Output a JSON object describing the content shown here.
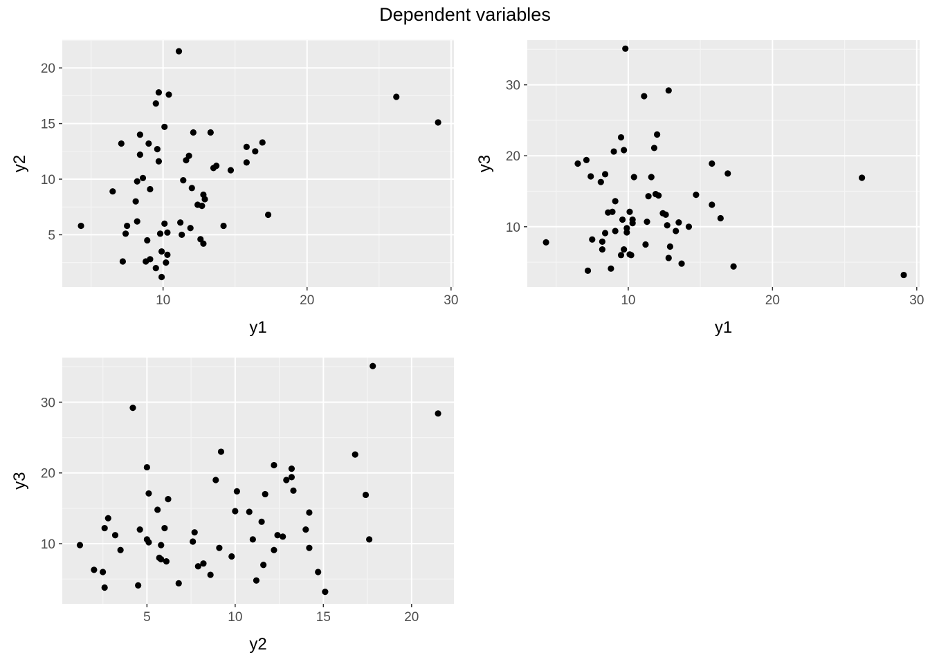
{
  "title": "Dependent variables",
  "colors": {
    "panel_bg": "#ebebeb",
    "grid_major": "#ffffff",
    "grid_minor": "#f5f5f5",
    "point": "#000000",
    "tick_text": "#4d4d4d"
  },
  "chart_data": [
    {
      "type": "scatter",
      "xlabel": "y1",
      "ylabel": "y2",
      "xlim": [
        3.0,
        30.2
      ],
      "ylim": [
        0.3,
        22.5
      ],
      "xticks": [
        10,
        20,
        30
      ],
      "yticks": [
        5,
        10,
        15,
        20
      ],
      "xtick_labels": [
        "10",
        "20",
        "30"
      ],
      "ytick_labels": [
        "5",
        "10",
        "15",
        "20"
      ],
      "grid": true,
      "points": [
        [
          4.3,
          5.8
        ],
        [
          6.5,
          8.9
        ],
        [
          7.1,
          13.2
        ],
        [
          7.2,
          2.6
        ],
        [
          7.4,
          5.1
        ],
        [
          7.5,
          5.8
        ],
        [
          8.1,
          8.0
        ],
        [
          8.2,
          9.8
        ],
        [
          8.2,
          6.2
        ],
        [
          8.4,
          14.0
        ],
        [
          8.4,
          12.2
        ],
        [
          8.6,
          10.1
        ],
        [
          8.8,
          2.6
        ],
        [
          8.9,
          4.5
        ],
        [
          9.0,
          13.2
        ],
        [
          9.1,
          9.1
        ],
        [
          9.1,
          2.8
        ],
        [
          9.5,
          2.0
        ],
        [
          9.5,
          16.8
        ],
        [
          9.6,
          12.7
        ],
        [
          9.7,
          11.6
        ],
        [
          9.7,
          17.8
        ],
        [
          9.8,
          5.1
        ],
        [
          9.9,
          1.2
        ],
        [
          9.9,
          3.5
        ],
        [
          10.1,
          14.7
        ],
        [
          10.1,
          6.0
        ],
        [
          10.2,
          2.5
        ],
        [
          10.3,
          3.2
        ],
        [
          10.3,
          5.2
        ],
        [
          10.4,
          17.6
        ],
        [
          11.1,
          21.5
        ],
        [
          11.2,
          6.1
        ],
        [
          11.3,
          5.0
        ],
        [
          11.4,
          9.9
        ],
        [
          11.6,
          11.7
        ],
        [
          11.8,
          12.1
        ],
        [
          11.9,
          5.6
        ],
        [
          12.0,
          9.2
        ],
        [
          12.1,
          14.2
        ],
        [
          12.4,
          7.7
        ],
        [
          12.6,
          4.6
        ],
        [
          12.7,
          7.6
        ],
        [
          12.8,
          4.2
        ],
        [
          12.8,
          8.6
        ],
        [
          12.9,
          8.2
        ],
        [
          13.3,
          14.2
        ],
        [
          13.5,
          11.0
        ],
        [
          13.7,
          11.2
        ],
        [
          14.2,
          5.8
        ],
        [
          14.7,
          10.8
        ],
        [
          15.8,
          12.9
        ],
        [
          15.8,
          11.5
        ],
        [
          16.4,
          12.5
        ],
        [
          16.9,
          13.3
        ],
        [
          17.3,
          6.8
        ],
        [
          26.2,
          17.4
        ],
        [
          29.1,
          15.1
        ]
      ]
    },
    {
      "type": "scatter",
      "xlabel": "y1",
      "ylabel": "y3",
      "xlim": [
        3.0,
        30.2
      ],
      "ylim": [
        1.5,
        36.3
      ],
      "xticks": [
        10,
        20,
        30
      ],
      "yticks": [
        10,
        20,
        30
      ],
      "xtick_labels": [
        "10",
        "20",
        "30"
      ],
      "ytick_labels": [
        "10",
        "20",
        "30"
      ],
      "grid": true,
      "points": [
        [
          4.3,
          7.8
        ],
        [
          6.5,
          18.9
        ],
        [
          7.1,
          19.4
        ],
        [
          7.2,
          3.8
        ],
        [
          7.4,
          17.1
        ],
        [
          7.5,
          8.2
        ],
        [
          8.1,
          16.3
        ],
        [
          8.2,
          7.9
        ],
        [
          8.2,
          6.8
        ],
        [
          8.4,
          17.4
        ],
        [
          8.4,
          9.1
        ],
        [
          8.6,
          12.0
        ],
        [
          8.8,
          4.1
        ],
        [
          8.9,
          12.1
        ],
        [
          9.0,
          20.6
        ],
        [
          9.1,
          9.4
        ],
        [
          9.1,
          13.6
        ],
        [
          9.5,
          6.0
        ],
        [
          9.5,
          22.6
        ],
        [
          9.6,
          11.0
        ],
        [
          9.7,
          20.8
        ],
        [
          9.7,
          6.8
        ],
        [
          9.8,
          35.1
        ],
        [
          9.9,
          9.2
        ],
        [
          9.9,
          9.8
        ],
        [
          10.1,
          12.1
        ],
        [
          10.1,
          6.1
        ],
        [
          10.2,
          6.0
        ],
        [
          10.3,
          10.5
        ],
        [
          10.3,
          11.0
        ],
        [
          10.4,
          17.0
        ],
        [
          11.1,
          28.4
        ],
        [
          11.2,
          7.5
        ],
        [
          11.3,
          10.7
        ],
        [
          11.4,
          14.3
        ],
        [
          11.6,
          17.0
        ],
        [
          11.8,
          21.1
        ],
        [
          11.9,
          14.6
        ],
        [
          12.0,
          23.0
        ],
        [
          12.1,
          14.4
        ],
        [
          12.4,
          11.9
        ],
        [
          12.6,
          11.7
        ],
        [
          12.7,
          10.2
        ],
        [
          12.8,
          5.6
        ],
        [
          12.8,
          29.2
        ],
        [
          12.9,
          7.2
        ],
        [
          13.3,
          9.4
        ],
        [
          13.5,
          10.6
        ],
        [
          13.7,
          4.8
        ],
        [
          14.2,
          10.0
        ],
        [
          14.7,
          14.5
        ],
        [
          15.8,
          18.9
        ],
        [
          15.8,
          13.1
        ],
        [
          16.4,
          11.2
        ],
        [
          16.9,
          17.5
        ],
        [
          17.3,
          4.4
        ],
        [
          26.2,
          16.9
        ],
        [
          29.1,
          3.2
        ]
      ]
    },
    {
      "type": "scatter",
      "xlabel": "y2",
      "ylabel": "y3",
      "xlim": [
        0.2,
        22.4
      ],
      "ylim": [
        1.5,
        36.3
      ],
      "xticks": [
        5,
        10,
        15,
        20
      ],
      "yticks": [
        10,
        20,
        30
      ],
      "xtick_labels": [
        "5",
        "10",
        "15",
        "20"
      ],
      "ytick_labels": [
        "10",
        "20",
        "30"
      ],
      "grid": true,
      "points": [
        [
          1.2,
          9.8
        ],
        [
          2.0,
          6.3
        ],
        [
          2.5,
          6.0
        ],
        [
          2.6,
          12.2
        ],
        [
          2.6,
          3.8
        ],
        [
          2.8,
          13.6
        ],
        [
          3.2,
          11.2
        ],
        [
          3.5,
          9.1
        ],
        [
          4.2,
          29.2
        ],
        [
          4.5,
          4.1
        ],
        [
          4.6,
          12.0
        ],
        [
          5.0,
          20.8
        ],
        [
          5.0,
          10.6
        ],
        [
          5.1,
          10.2
        ],
        [
          5.1,
          17.1
        ],
        [
          5.6,
          14.8
        ],
        [
          5.7,
          8.0
        ],
        [
          5.8,
          9.8
        ],
        [
          5.8,
          7.8
        ],
        [
          6.0,
          12.2
        ],
        [
          6.1,
          7.5
        ],
        [
          6.2,
          16.3
        ],
        [
          6.8,
          4.4
        ],
        [
          7.6,
          10.3
        ],
        [
          7.7,
          11.6
        ],
        [
          7.9,
          6.8
        ],
        [
          8.2,
          7.2
        ],
        [
          8.6,
          5.6
        ],
        [
          8.9,
          19.0
        ],
        [
          9.1,
          9.4
        ],
        [
          9.2,
          23.0
        ],
        [
          9.8,
          8.2
        ],
        [
          10.0,
          14.6
        ],
        [
          10.1,
          17.4
        ],
        [
          10.8,
          14.5
        ],
        [
          11.0,
          10.6
        ],
        [
          11.2,
          4.8
        ],
        [
          11.5,
          13.1
        ],
        [
          11.6,
          7.0
        ],
        [
          11.7,
          17.0
        ],
        [
          12.2,
          21.1
        ],
        [
          12.2,
          9.1
        ],
        [
          12.4,
          11.2
        ],
        [
          12.7,
          11.0
        ],
        [
          12.9,
          19.0
        ],
        [
          13.2,
          20.6
        ],
        [
          13.2,
          19.4
        ],
        [
          13.3,
          17.5
        ],
        [
          14.0,
          12.0
        ],
        [
          14.2,
          14.4
        ],
        [
          14.2,
          9.4
        ],
        [
          14.7,
          6.0
        ],
        [
          15.1,
          3.2
        ],
        [
          16.8,
          22.6
        ],
        [
          17.4,
          16.9
        ],
        [
          17.6,
          10.6
        ],
        [
          17.8,
          35.1
        ],
        [
          21.5,
          28.4
        ]
      ]
    }
  ]
}
